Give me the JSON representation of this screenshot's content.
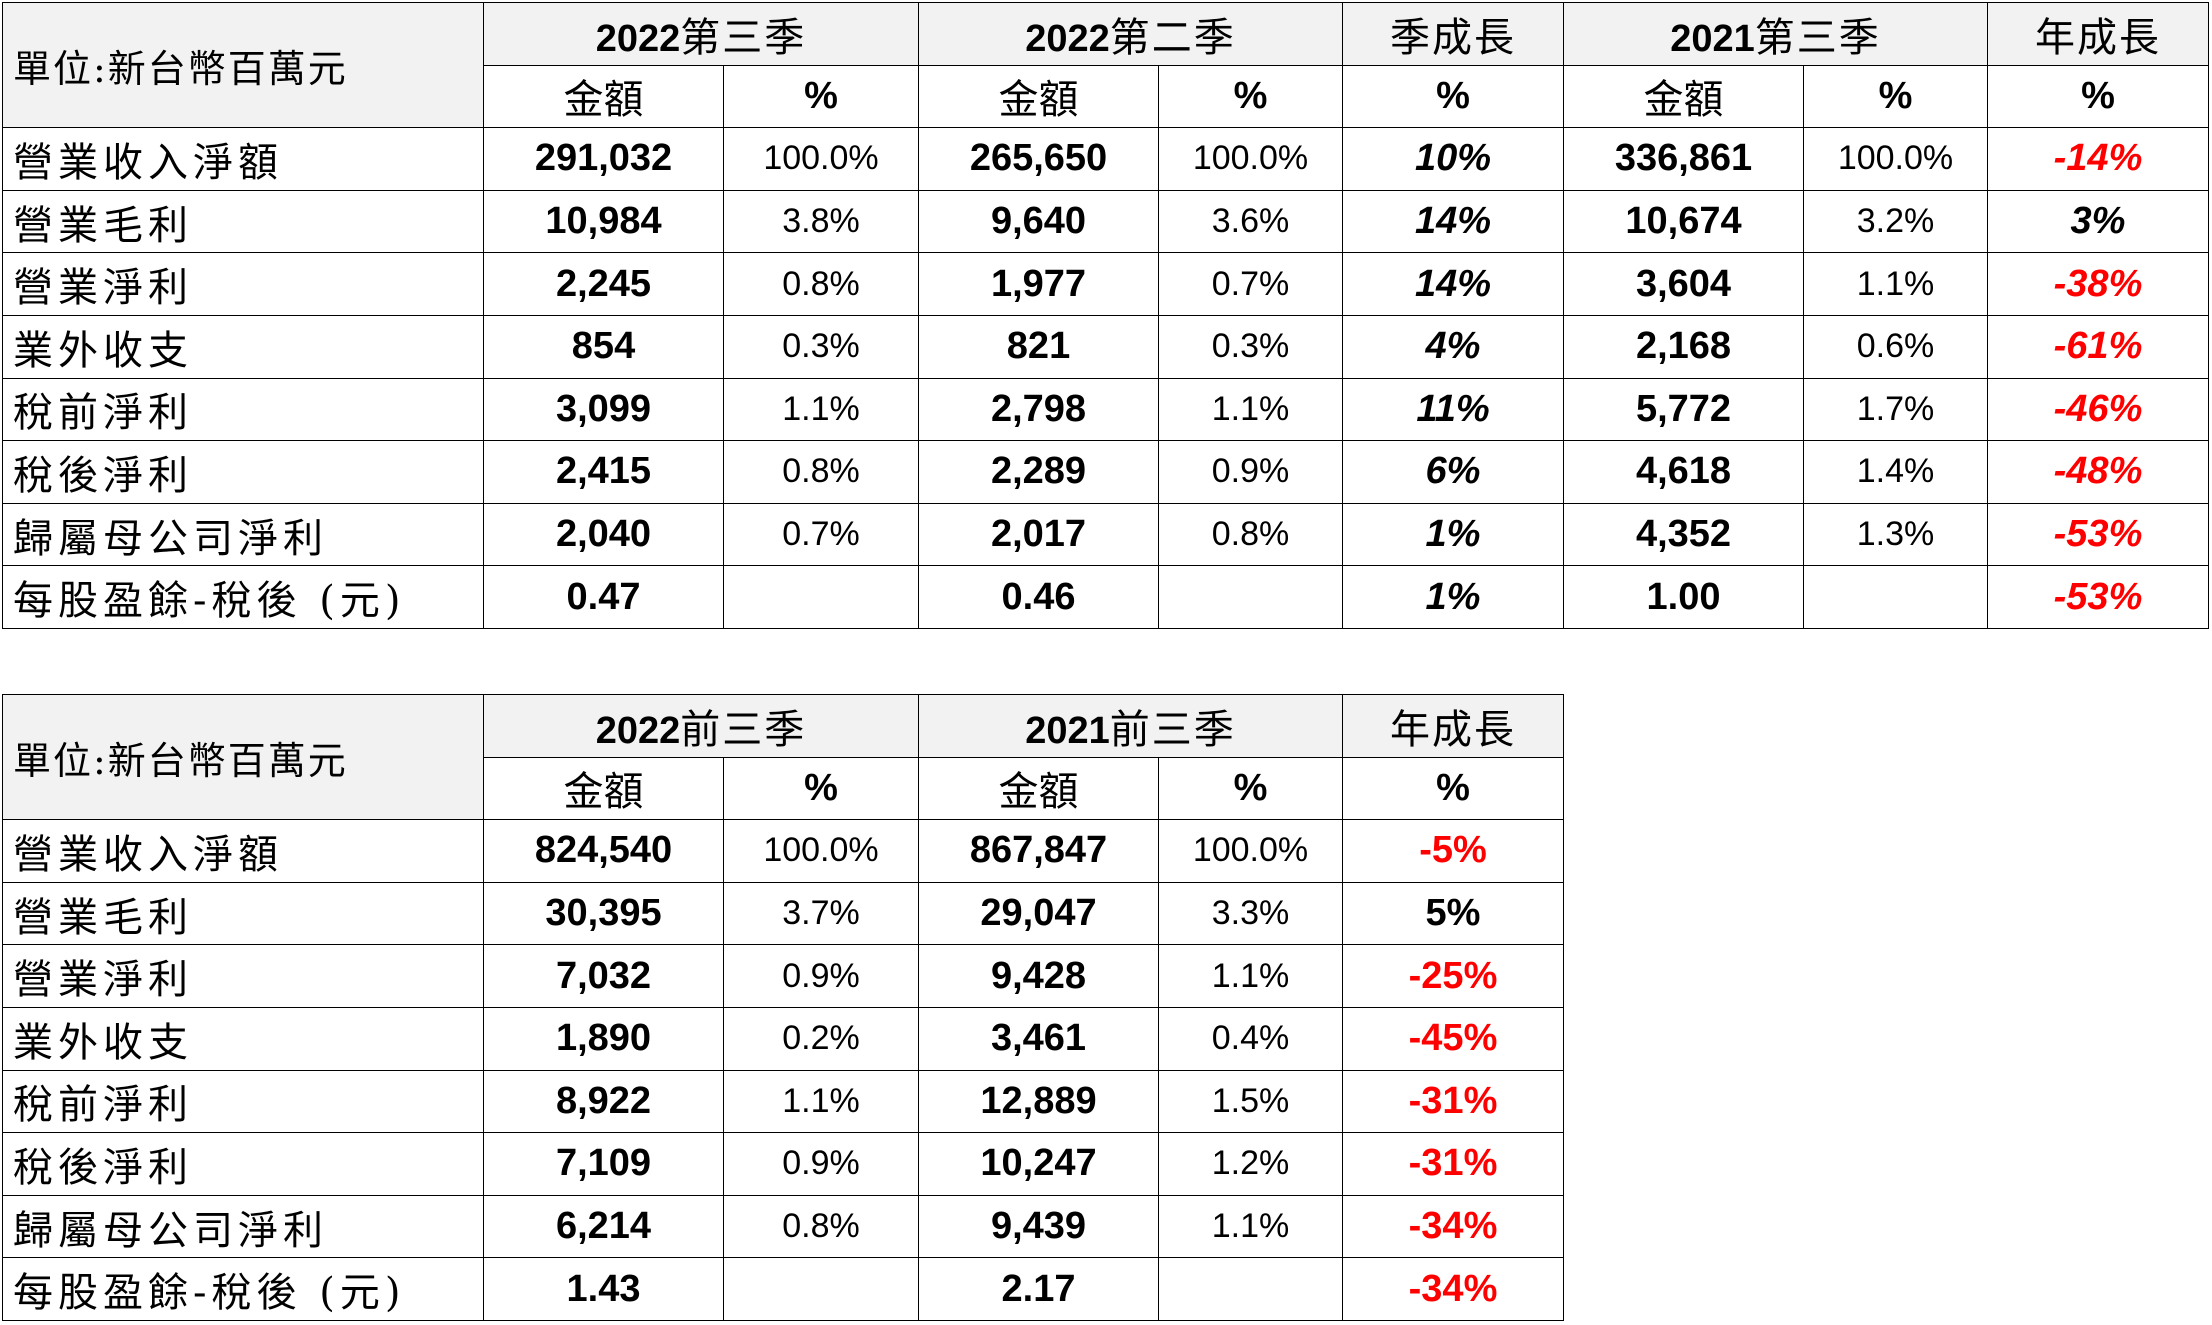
{
  "quarterly": {
    "unit_label": "單位:新台幣百萬元",
    "groups": [
      {
        "year": "2022",
        "period": "第三季"
      },
      {
        "year": "2022",
        "period": "第二季"
      },
      {
        "year": "",
        "period": "季成長"
      },
      {
        "year": "2021",
        "period": "第三季"
      },
      {
        "year": "",
        "period": "年成長"
      }
    ],
    "sub_headers": [
      "金額",
      "%",
      "金額",
      "%",
      "%",
      "金額",
      "%",
      "%"
    ],
    "rows": [
      {
        "label": "營業收入淨額",
        "amt1": "291,032",
        "pct1": "100.0%",
        "amt2": "265,650",
        "pct2": "100.0%",
        "qoq": "10%",
        "amt3": "336,861",
        "pct3": "100.0%",
        "yoy": "-14%"
      },
      {
        "label": "營業毛利",
        "amt1": "10,984",
        "pct1": "3.8%",
        "amt2": "9,640",
        "pct2": "3.6%",
        "qoq": "14%",
        "amt3": "10,674",
        "pct3": "3.2%",
        "yoy": "3%"
      },
      {
        "label": "營業淨利",
        "amt1": "2,245",
        "pct1": "0.8%",
        "amt2": "1,977",
        "pct2": "0.7%",
        "qoq": "14%",
        "amt3": "3,604",
        "pct3": "1.1%",
        "yoy": "-38%"
      },
      {
        "label": "業外收支",
        "amt1": "854",
        "pct1": "0.3%",
        "amt2": "821",
        "pct2": "0.3%",
        "qoq": "4%",
        "amt3": "2,168",
        "pct3": "0.6%",
        "yoy": "-61%"
      },
      {
        "label": "稅前淨利",
        "amt1": "3,099",
        "pct1": "1.1%",
        "amt2": "2,798",
        "pct2": "1.1%",
        "qoq": "11%",
        "amt3": "5,772",
        "pct3": "1.7%",
        "yoy": "-46%"
      },
      {
        "label": "稅後淨利",
        "amt1": "2,415",
        "pct1": "0.8%",
        "amt2": "2,289",
        "pct2": "0.9%",
        "qoq": "6%",
        "amt3": "4,618",
        "pct3": "1.4%",
        "yoy": "-48%"
      },
      {
        "label": "歸屬母公司淨利",
        "amt1": "2,040",
        "pct1": "0.7%",
        "amt2": "2,017",
        "pct2": "0.8%",
        "qoq": "1%",
        "amt3": "4,352",
        "pct3": "1.3%",
        "yoy": "-53%"
      },
      {
        "label": "每股盈餘-稅後 (元)",
        "amt1": "0.47",
        "pct1": "",
        "amt2": "0.46",
        "pct2": "",
        "qoq": "1%",
        "amt3": "1.00",
        "pct3": "",
        "yoy": "-53%"
      }
    ]
  },
  "cumulative": {
    "unit_label": "單位:新台幣百萬元",
    "groups": [
      {
        "year": "2022",
        "period": "前三季"
      },
      {
        "year": "2021",
        "period": "前三季"
      },
      {
        "year": "",
        "period": "年成長"
      }
    ],
    "sub_headers": [
      "金額",
      "%",
      "金額",
      "%",
      "%"
    ],
    "rows": [
      {
        "label": "營業收入淨額",
        "amt1": "824,540",
        "pct1": "100.0%",
        "amt2": "867,847",
        "pct2": "100.0%",
        "yoy": "-5%"
      },
      {
        "label": "營業毛利",
        "amt1": "30,395",
        "pct1": "3.7%",
        "amt2": "29,047",
        "pct2": "3.3%",
        "yoy": "5%"
      },
      {
        "label": "營業淨利",
        "amt1": "7,032",
        "pct1": "0.9%",
        "amt2": "9,428",
        "pct2": "1.1%",
        "yoy": "-25%"
      },
      {
        "label": "業外收支",
        "amt1": "1,890",
        "pct1": "0.2%",
        "amt2": "3,461",
        "pct2": "0.4%",
        "yoy": "-45%"
      },
      {
        "label": "稅前淨利",
        "amt1": "8,922",
        "pct1": "1.1%",
        "amt2": "12,889",
        "pct2": "1.5%",
        "yoy": "-31%"
      },
      {
        "label": "稅後淨利",
        "amt1": "7,109",
        "pct1": "0.9%",
        "amt2": "10,247",
        "pct2": "1.2%",
        "yoy": "-31%"
      },
      {
        "label": "歸屬母公司淨利",
        "amt1": "6,214",
        "pct1": "0.8%",
        "amt2": "9,439",
        "pct2": "1.1%",
        "yoy": "-34%"
      },
      {
        "label": "每股盈餘-稅後 (元)",
        "amt1": "1.43",
        "pct1": "",
        "amt2": "2.17",
        "pct2": "",
        "yoy": "-34%"
      }
    ]
  },
  "colors": {
    "negative": "#ff0000",
    "header_bg": "#f2f2f2"
  }
}
